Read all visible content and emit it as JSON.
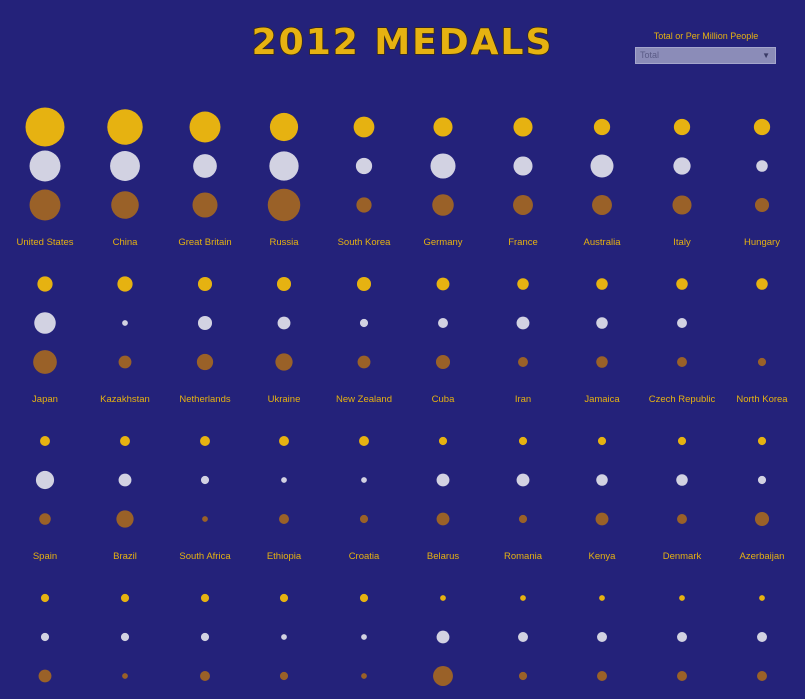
{
  "page": {
    "title": "2012 MEDALS"
  },
  "filter": {
    "label": "Total or Per Million People",
    "selected": "Total"
  },
  "colors": {
    "background": "#24227a",
    "gold": "#e6b211",
    "silver": "#d2d2e2",
    "bronze": "#9a6128",
    "label": "#e6b211"
  },
  "chart_data": {
    "type": "scatter",
    "title": "2012 MEDALS",
    "encoding": "circle area proportional to medal count; rows per country: gold, silver, bronze",
    "grid": false,
    "countries": [
      {
        "name": "United States",
        "gold": 46,
        "silver": 29,
        "bronze": 29
      },
      {
        "name": "China",
        "gold": 38,
        "silver": 27,
        "bronze": 23
      },
      {
        "name": "Great Britain",
        "gold": 29,
        "silver": 17,
        "bronze": 19
      },
      {
        "name": "Russia",
        "gold": 24,
        "silver": 26,
        "bronze": 32
      },
      {
        "name": "South Korea",
        "gold": 13,
        "silver": 8,
        "bronze": 7
      },
      {
        "name": "Germany",
        "gold": 11,
        "silver": 19,
        "bronze": 14
      },
      {
        "name": "France",
        "gold": 11,
        "silver": 11,
        "bronze": 12
      },
      {
        "name": "Australia",
        "gold": 8,
        "silver": 16,
        "bronze": 12
      },
      {
        "name": "Italy",
        "gold": 8,
        "silver": 9,
        "bronze": 11
      },
      {
        "name": "Hungary",
        "gold": 8,
        "silver": 4,
        "bronze": 6
      },
      {
        "name": "Japan",
        "gold": 7,
        "silver": 14,
        "bronze": 17
      },
      {
        "name": "Kazakhstan",
        "gold": 7,
        "silver": 1,
        "bronze": 5
      },
      {
        "name": "Netherlands",
        "gold": 6,
        "silver": 6,
        "bronze": 8
      },
      {
        "name": "Ukraine",
        "gold": 6,
        "silver": 5,
        "bronze": 9
      },
      {
        "name": "New Zealand",
        "gold": 6,
        "silver": 2,
        "bronze": 5
      },
      {
        "name": "Cuba",
        "gold": 5,
        "silver": 3,
        "bronze": 6
      },
      {
        "name": "Iran",
        "gold": 4,
        "silver": 5,
        "bronze": 3
      },
      {
        "name": "Jamaica",
        "gold": 4,
        "silver": 4,
        "bronze": 4
      },
      {
        "name": "Czech Republic",
        "gold": 4,
        "silver": 3,
        "bronze": 3
      },
      {
        "name": "North Korea",
        "gold": 4,
        "silver": 0,
        "bronze": 2
      },
      {
        "name": "Spain",
        "gold": 3,
        "silver": 10,
        "bronze": 4
      },
      {
        "name": "Brazil",
        "gold": 3,
        "silver": 5,
        "bronze": 9
      },
      {
        "name": "South Africa",
        "gold": 3,
        "silver": 2,
        "bronze": 1
      },
      {
        "name": "Ethiopia",
        "gold": 3,
        "silver": 1,
        "bronze": 3
      },
      {
        "name": "Croatia",
        "gold": 3,
        "silver": 1,
        "bronze": 2
      },
      {
        "name": "Belarus",
        "gold": 2,
        "silver": 5,
        "bronze": 5
      },
      {
        "name": "Romania",
        "gold": 2,
        "silver": 5,
        "bronze": 2
      },
      {
        "name": "Kenya",
        "gold": 2,
        "silver": 4,
        "bronze": 5
      },
      {
        "name": "Denmark",
        "gold": 2,
        "silver": 4,
        "bronze": 3
      },
      {
        "name": "Azerbaijan",
        "gold": 2,
        "silver": 2,
        "bronze": 6
      },
      {
        "name": "",
        "gold": 2,
        "silver": 2,
        "bronze": 5
      },
      {
        "name": "",
        "gold": 2,
        "silver": 2,
        "bronze": 1
      },
      {
        "name": "",
        "gold": 2,
        "silver": 2,
        "bronze": 3
      },
      {
        "name": "",
        "gold": 2,
        "silver": 1,
        "bronze": 2
      },
      {
        "name": "",
        "gold": 2,
        "silver": 1,
        "bronze": 1
      },
      {
        "name": "",
        "gold": 1,
        "silver": 5,
        "bronze": 12
      },
      {
        "name": "",
        "gold": 1,
        "silver": 3,
        "bronze": 2
      },
      {
        "name": "",
        "gold": 1,
        "silver": 3,
        "bronze": 3
      },
      {
        "name": "",
        "gold": 1,
        "silver": 3,
        "bronze": 3
      },
      {
        "name": "",
        "gold": 1,
        "silver": 3,
        "bronze": 3
      }
    ]
  }
}
